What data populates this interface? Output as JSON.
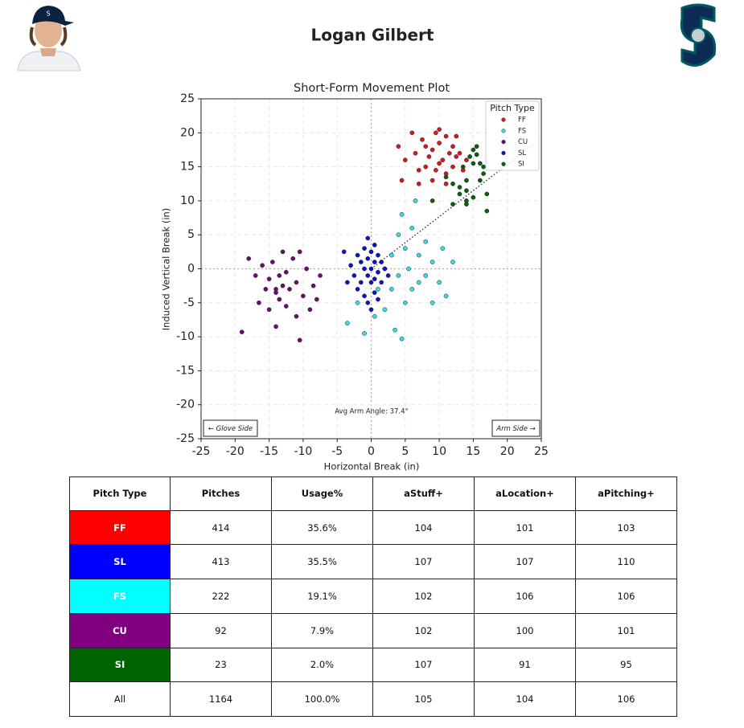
{
  "header": {
    "title": "Logan Gilbert"
  },
  "chart_data": {
    "type": "scatter",
    "title": "Short-Form Movement Plot",
    "x_label": "Horizontal Break (in)",
    "y_label": "Induced Vertical Break (in)",
    "xlim": [
      -25,
      25
    ],
    "ylim": [
      -25,
      25
    ],
    "xticks": [
      -25,
      -20,
      -15,
      -10,
      -5,
      0,
      5,
      10,
      15,
      20,
      25
    ],
    "yticks": [
      -25,
      -20,
      -15,
      -10,
      -5,
      0,
      5,
      10,
      15,
      20,
      25
    ],
    "grid": true,
    "legend_title": "Pitch Type",
    "legend_position": "upper right",
    "annotations": [
      "Avg Arm Angle: 37.4°",
      "← Glove Side",
      "Arm Side →"
    ],
    "arm_angle_line": {
      "x": [
        0,
        24
      ],
      "values": [
        0,
        18.4
      ]
    },
    "series": [
      {
        "name": "FF",
        "color": "#d7191c",
        "x": [
          4,
          5,
          6,
          6.5,
          7,
          7.5,
          8,
          8,
          8.5,
          9,
          9,
          9.5,
          10,
          10,
          10.5,
          11,
          11,
          11.5,
          12,
          12,
          12.5,
          13,
          13.5,
          14,
          7,
          9.5,
          11,
          10,
          12.5,
          4.5
        ],
        "values": [
          18,
          16,
          20,
          17,
          14.5,
          19,
          15,
          18,
          16.5,
          13,
          17.5,
          20,
          15.5,
          18.5,
          16,
          14,
          19.5,
          17,
          15,
          18,
          16.5,
          17,
          14.5,
          16,
          12.5,
          14.5,
          12.5,
          20.5,
          19.5,
          13
        ]
      },
      {
        "name": "FS",
        "color": "#33dede",
        "x": [
          -3.5,
          -2,
          -1,
          0.5,
          1,
          2,
          2,
          3,
          3,
          3.5,
          4,
          4,
          4.5,
          5,
          5,
          5.5,
          6,
          6,
          6.5,
          7,
          7,
          8,
          8,
          9,
          9,
          10,
          10.5,
          11,
          12,
          4.5
        ],
        "values": [
          -8,
          -5,
          -9.5,
          -7,
          -3,
          0,
          -6,
          2,
          -3,
          -9,
          5,
          -1,
          8,
          3,
          -5,
          0,
          6,
          -3,
          10,
          2,
          -2,
          4,
          -1,
          1,
          -5,
          -2,
          3,
          -4,
          1,
          -10.3
        ]
      },
      {
        "name": "CU",
        "color": "#6b0f6e",
        "x": [
          -19,
          -18,
          -17,
          -16.5,
          -16,
          -15.5,
          -15,
          -15,
          -14.5,
          -14,
          -14,
          -13.5,
          -13.5,
          -13,
          -13,
          -12.5,
          -12.5,
          -12,
          -11.5,
          -11,
          -11,
          -10.5,
          -10.5,
          -10,
          -9.5,
          -9,
          -8.5,
          -8,
          -7.5,
          -14
        ],
        "values": [
          -9.3,
          1.5,
          -1,
          -5,
          0.5,
          -3,
          -1.5,
          -6,
          1,
          -3.5,
          -8.5,
          -1,
          -4.5,
          2.5,
          -2.5,
          -0.5,
          -5.5,
          -3,
          1.5,
          -2,
          -7,
          -10.5,
          2.5,
          -4,
          0,
          -6,
          -2.5,
          -4.5,
          -1,
          -3
        ]
      },
      {
        "name": "SL",
        "color": "#0a14c8",
        "x": [
          -3,
          -2.5,
          -2,
          -2,
          -1.5,
          -1.5,
          -1,
          -1,
          -1,
          -0.5,
          -0.5,
          -0.5,
          -0.5,
          0,
          0,
          0,
          0,
          0.5,
          0.5,
          0.5,
          0.5,
          1,
          1,
          1,
          1.5,
          1.5,
          2,
          2.5,
          -3.5,
          -4
        ],
        "values": [
          0.5,
          -1,
          2,
          -3,
          1,
          -2,
          3,
          0,
          -4,
          4.5,
          1.5,
          -1,
          -5,
          2.5,
          0,
          -2,
          -6,
          3.5,
          1,
          -1.5,
          -3.5,
          2,
          -0.5,
          -4.5,
          1,
          -2,
          0,
          -1,
          -2,
          2.5
        ]
      },
      {
        "name": "SI",
        "color": "#0b5e12",
        "x": [
          9,
          11,
          12,
          13,
          13.5,
          14,
          14.5,
          15,
          15.5,
          15,
          16,
          16.5,
          17,
          17,
          15,
          16,
          14,
          16.5,
          15.5,
          14,
          13,
          12,
          14
        ],
        "values": [
          10,
          13.5,
          12.5,
          11,
          15,
          11.5,
          16.5,
          17.5,
          18,
          15.5,
          15.5,
          14,
          11,
          8.5,
          10.5,
          13,
          13,
          15,
          16.8,
          9.5,
          12,
          9.5,
          10
        ]
      }
    ]
  },
  "table": {
    "columns": [
      "Pitch Type",
      "Pitches",
      "Usage%",
      "aStuff+",
      "aLocation+",
      "aPitching+"
    ],
    "rows": [
      [
        "FF",
        "414",
        "35.6%",
        "104",
        "101",
        "103"
      ],
      [
        "SL",
        "413",
        "35.5%",
        "107",
        "107",
        "110"
      ],
      [
        "FS",
        "222",
        "19.1%",
        "102",
        "106",
        "106"
      ],
      [
        "CU",
        "92",
        "7.9%",
        "102",
        "100",
        "101"
      ],
      [
        "SI",
        "23",
        "2.0%",
        "107",
        "91",
        "95"
      ],
      [
        "All",
        "1164",
        "100.0%",
        "105",
        "104",
        "106"
      ]
    ],
    "row_colors": [
      "#ff0000",
      "#0000ff",
      "#00ffff",
      "#800080",
      "#006400"
    ]
  }
}
